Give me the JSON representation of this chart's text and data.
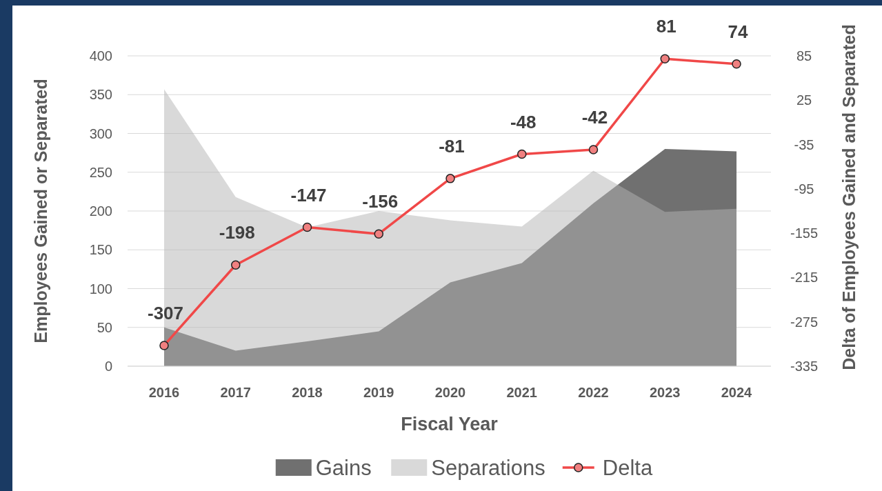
{
  "chart_data": {
    "type": "area",
    "xlabel": "Fiscal Year",
    "ylabel": "Employees Gained or Separated",
    "y2label": "Delta of Employees Gained and Separated",
    "categories": [
      "2016",
      "2017",
      "2018",
      "2019",
      "2020",
      "2021",
      "2022",
      "2023",
      "2024"
    ],
    "series": [
      {
        "name": "Gains",
        "color": "#707070",
        "values": [
          50,
          20,
          32,
          45,
          108,
          133,
          210,
          280,
          277
        ]
      },
      {
        "name": "Separations",
        "color": "#b3b3b3",
        "values": [
          357,
          218,
          179,
          200,
          188,
          180,
          252,
          199,
          203
        ]
      },
      {
        "name": "Delta",
        "type": "line",
        "axis": "y2",
        "color": "#f04848",
        "marker": "circle",
        "data_labels": true,
        "values": [
          -307,
          -198,
          -147,
          -156,
          -81,
          -48,
          -42,
          81,
          74
        ]
      }
    ],
    "ylim": [
      0,
      400
    ],
    "yticks": [
      0,
      50,
      100,
      150,
      200,
      250,
      300,
      350,
      400
    ],
    "y2lim": [
      -335,
      85
    ],
    "y2ticks": [
      -335,
      -275,
      -215,
      -155,
      -95,
      -35,
      25,
      85
    ],
    "grid": "y",
    "legend": "bottom"
  }
}
